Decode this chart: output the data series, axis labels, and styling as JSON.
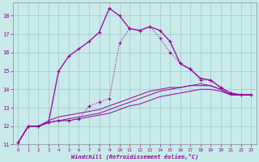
{
  "title": "",
  "xlabel": "Windchill (Refroidissement éolien,°C)",
  "background_color": "#c8eaea",
  "line_color": "#990099",
  "xlim": [
    -0.5,
    23.5
  ],
  "ylim": [
    11,
    18.7
  ],
  "xticks": [
    0,
    1,
    2,
    3,
    4,
    5,
    6,
    7,
    8,
    9,
    10,
    11,
    12,
    13,
    14,
    15,
    16,
    17,
    18,
    19,
    20,
    21,
    22,
    23
  ],
  "yticks": [
    11,
    12,
    13,
    14,
    15,
    16,
    17,
    18
  ],
  "hours": [
    0,
    1,
    2,
    3,
    4,
    5,
    6,
    7,
    8,
    9,
    10,
    11,
    12,
    13,
    14,
    15,
    16,
    17,
    18,
    19,
    20,
    21,
    22,
    23
  ],
  "windchill": [
    11.1,
    12.0,
    12.0,
    12.2,
    15.0,
    15.8,
    16.2,
    16.6,
    17.1,
    18.4,
    18.0,
    17.3,
    17.2,
    17.4,
    17.2,
    16.6,
    15.4,
    15.1,
    14.6,
    14.5,
    14.1,
    13.8,
    13.7,
    13.7
  ],
  "temp_dotted": [
    11.1,
    12.0,
    12.0,
    12.2,
    12.3,
    12.3,
    12.4,
    13.1,
    13.3,
    13.5,
    16.5,
    17.3,
    17.2,
    17.4,
    16.8,
    16.0,
    15.4,
    15.1,
    14.5,
    14.5,
    14.1,
    13.8,
    13.7,
    13.7
  ],
  "line_lower1": [
    11.1,
    12.0,
    12.0,
    12.2,
    12.3,
    12.3,
    12.4,
    12.5,
    12.6,
    12.7,
    12.9,
    13.1,
    13.2,
    13.4,
    13.6,
    13.7,
    13.8,
    13.9,
    14.0,
    14.0,
    13.9,
    13.7,
    13.7,
    13.7
  ],
  "line_lower2": [
    11.1,
    12.0,
    12.0,
    12.2,
    12.3,
    12.4,
    12.5,
    12.6,
    12.7,
    12.9,
    13.1,
    13.3,
    13.5,
    13.7,
    13.9,
    14.0,
    14.1,
    14.2,
    14.2,
    14.2,
    14.0,
    13.7,
    13.7,
    13.7
  ],
  "line_lower3": [
    11.1,
    12.0,
    12.0,
    12.3,
    12.5,
    12.6,
    12.7,
    12.8,
    12.9,
    13.1,
    13.3,
    13.5,
    13.7,
    13.9,
    14.0,
    14.1,
    14.1,
    14.2,
    14.3,
    14.2,
    14.0,
    13.7,
    13.7,
    13.7
  ]
}
